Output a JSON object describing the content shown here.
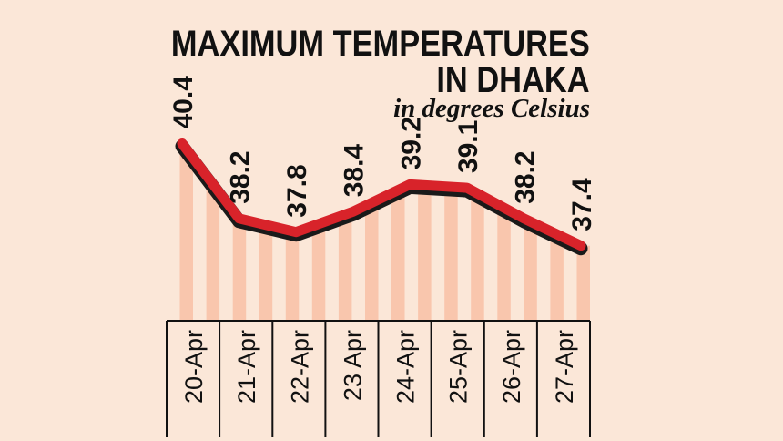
{
  "title_line1": "MAXIMUM TEMPERATURES",
  "title_line2": "IN DHAKA",
  "subtitle": "in degrees Celsius",
  "colors": {
    "background": "#fbe7d8",
    "bar": "#f9c6ad",
    "line": "#d8232a",
    "line_shadow": "#1a1a1a",
    "axis": "#111111"
  },
  "chart_data": {
    "type": "line",
    "categories": [
      "20-Apr",
      "21-Apr",
      "22-Apr",
      "23 Apr",
      "24-Apr",
      "25-Apr",
      "26-Apr",
      "27-Apr"
    ],
    "values": [
      40.4,
      38.2,
      37.8,
      38.4,
      39.2,
      39.1,
      38.2,
      37.4
    ],
    "value_labels": [
      "40.4",
      "38.2",
      "37.8",
      "38.4",
      "39.2",
      "39.1",
      "38.2",
      "37.4"
    ],
    "units": "degrees Celsius",
    "ylim": [
      35.2,
      40.6
    ],
    "grid": false,
    "legend": false
  }
}
